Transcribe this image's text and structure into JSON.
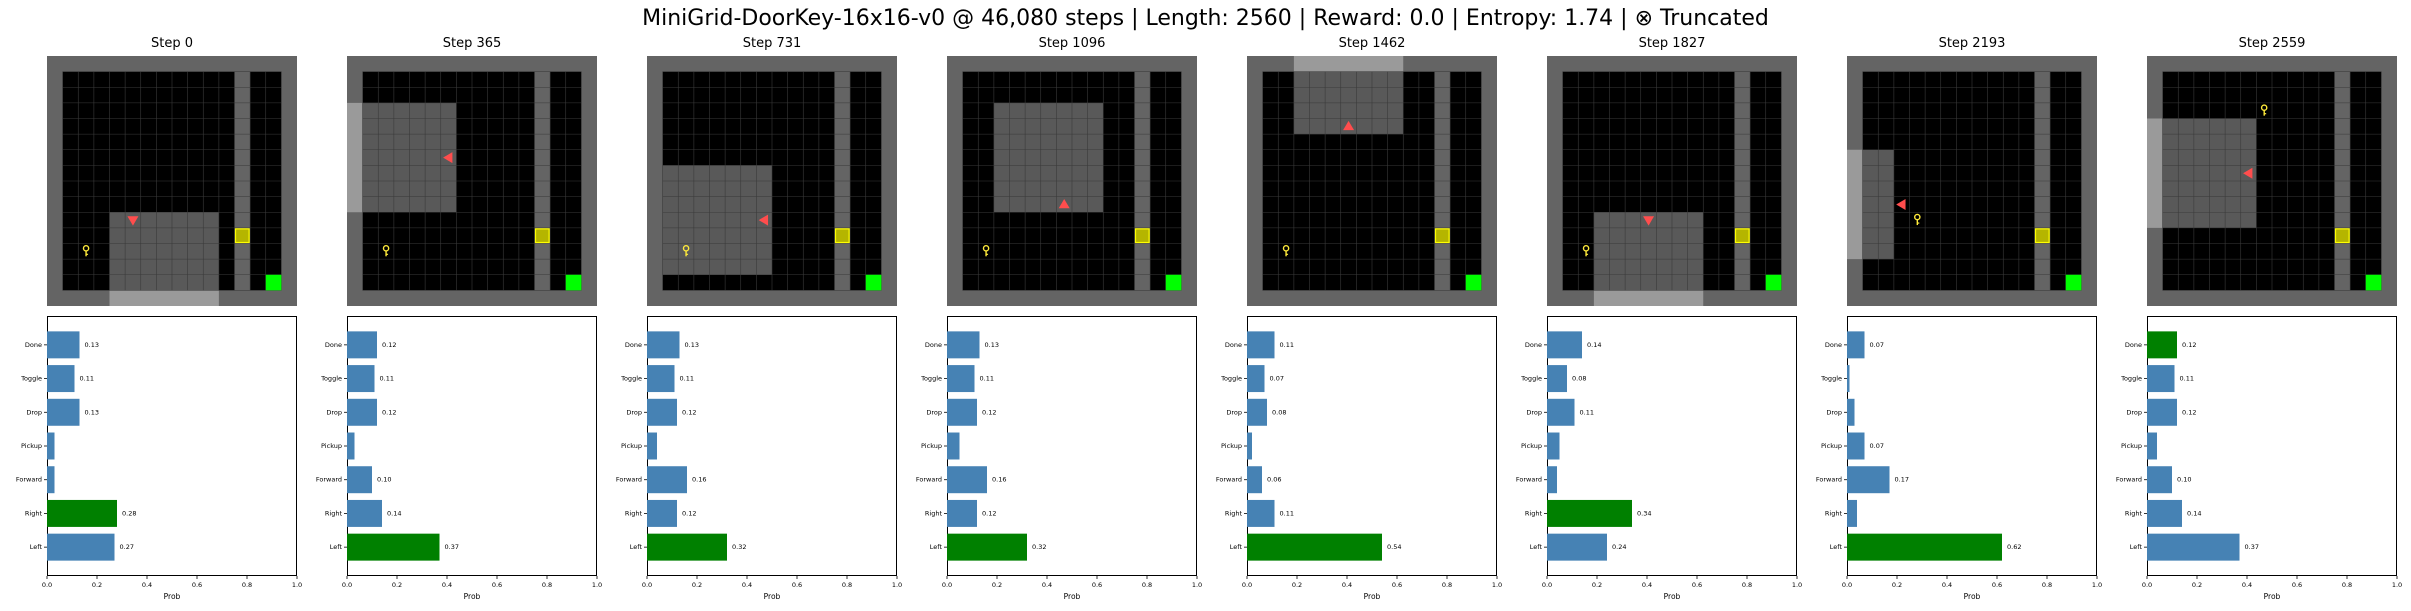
{
  "suptitle": "MiniGrid-DoorKey-16x16-v0 @ 46,080 steps | Length: 2560 | Reward: 0.0 | Entropy: 1.74 | ⊗ Truncated",
  "colors": {
    "default_bar": "#4682b4",
    "chosen_bar": "#008000",
    "agent": "#ff4d4d",
    "key": "#ffeb3b",
    "door": "#b5b500",
    "goal": "#00ff00",
    "wall": "#646464",
    "floor": "#000000",
    "view": "#5a5a5a"
  },
  "chart_data": [
    {
      "type": "bar",
      "orientation": "horizontal",
      "title": "Step 0",
      "categories": [
        "Done",
        "Toggle",
        "Drop",
        "Pickup",
        "Forward",
        "Right",
        "Left"
      ],
      "values": [
        0.13,
        0.11,
        0.13,
        0.03,
        0.03,
        0.28,
        0.27
      ],
      "data_labels": [
        "0.13",
        "0.11",
        "0.13",
        "",
        "",
        "0.28",
        "0.27"
      ],
      "chosen": "Right",
      "xlabel": "Prob",
      "xlim": [
        0,
        1.0
      ],
      "xticks": [
        "0.0",
        "0.2",
        "0.4",
        "0.6",
        "0.8",
        "1.0"
      ]
    },
    {
      "type": "bar",
      "orientation": "horizontal",
      "title": "Step 365",
      "categories": [
        "Done",
        "Toggle",
        "Drop",
        "Pickup",
        "Forward",
        "Right",
        "Left"
      ],
      "values": [
        0.12,
        0.11,
        0.12,
        0.03,
        0.1,
        0.14,
        0.37
      ],
      "data_labels": [
        "0.12",
        "0.11",
        "0.12",
        "",
        "0.10",
        "0.14",
        "0.37"
      ],
      "chosen": "Left",
      "xlabel": "Prob",
      "xlim": [
        0,
        1.0
      ],
      "xticks": [
        "0.0",
        "0.2",
        "0.4",
        "0.6",
        "0.8",
        "1.0"
      ]
    },
    {
      "type": "bar",
      "orientation": "horizontal",
      "title": "Step 731",
      "categories": [
        "Done",
        "Toggle",
        "Drop",
        "Pickup",
        "Forward",
        "Right",
        "Left"
      ],
      "values": [
        0.13,
        0.11,
        0.12,
        0.04,
        0.16,
        0.12,
        0.32
      ],
      "data_labels": [
        "0.13",
        "0.11",
        "0.12",
        "",
        "0.16",
        "0.12",
        "0.32"
      ],
      "chosen": "Left",
      "xlabel": "Prob",
      "xlim": [
        0,
        1.0
      ],
      "xticks": [
        "0.0",
        "0.2",
        "0.4",
        "0.6",
        "0.8",
        "1.0"
      ]
    },
    {
      "type": "bar",
      "orientation": "horizontal",
      "title": "Step 1096",
      "categories": [
        "Done",
        "Toggle",
        "Drop",
        "Pickup",
        "Forward",
        "Right",
        "Left"
      ],
      "values": [
        0.13,
        0.11,
        0.12,
        0.05,
        0.16,
        0.12,
        0.32
      ],
      "data_labels": [
        "0.13",
        "0.11",
        "0.12",
        "",
        "0.16",
        "0.12",
        "0.32"
      ],
      "chosen": "Left",
      "xlabel": "Prob",
      "xlim": [
        0,
        1.0
      ],
      "xticks": [
        "0.0",
        "0.2",
        "0.4",
        "0.6",
        "0.8",
        "1.0"
      ]
    },
    {
      "type": "bar",
      "orientation": "horizontal",
      "title": "Step 1462",
      "categories": [
        "Done",
        "Toggle",
        "Drop",
        "Pickup",
        "Forward",
        "Right",
        "Left"
      ],
      "values": [
        0.11,
        0.07,
        0.08,
        0.02,
        0.06,
        0.11,
        0.54
      ],
      "data_labels": [
        "0.11",
        "0.07",
        "0.08",
        "",
        "0.06",
        "0.11",
        "0.54"
      ],
      "chosen": "Left",
      "xlabel": "Prob",
      "xlim": [
        0,
        1.0
      ],
      "xticks": [
        "0.0",
        "0.2",
        "0.4",
        "0.6",
        "0.8",
        "1.0"
      ]
    },
    {
      "type": "bar",
      "orientation": "horizontal",
      "title": "Step 1827",
      "categories": [
        "Done",
        "Toggle",
        "Drop",
        "Pickup",
        "Forward",
        "Right",
        "Left"
      ],
      "values": [
        0.14,
        0.08,
        0.11,
        0.05,
        0.04,
        0.34,
        0.24
      ],
      "data_labels": [
        "0.14",
        "0.08",
        "0.11",
        "",
        "",
        "0.34",
        "0.24"
      ],
      "chosen": "Right",
      "xlabel": "Prob",
      "xlim": [
        0,
        1.0
      ],
      "xticks": [
        "0.0",
        "0.2",
        "0.4",
        "0.6",
        "0.8",
        "1.0"
      ]
    },
    {
      "type": "bar",
      "orientation": "horizontal",
      "title": "Step 2193",
      "categories": [
        "Done",
        "Toggle",
        "Drop",
        "Pickup",
        "Forward",
        "Right",
        "Left"
      ],
      "values": [
        0.07,
        0.01,
        0.03,
        0.07,
        0.17,
        0.04,
        0.62
      ],
      "data_labels": [
        "0.07",
        "",
        "",
        "0.07",
        "0.17",
        "",
        "0.62"
      ],
      "chosen": "Left",
      "xlabel": "Prob",
      "xlim": [
        0,
        1.0
      ],
      "xticks": [
        "0.0",
        "0.2",
        "0.4",
        "0.6",
        "0.8",
        "1.0"
      ]
    },
    {
      "type": "bar",
      "orientation": "horizontal",
      "title": "Step 2559",
      "categories": [
        "Done",
        "Toggle",
        "Drop",
        "Pickup",
        "Forward",
        "Right",
        "Left"
      ],
      "values": [
        0.12,
        0.11,
        0.12,
        0.04,
        0.1,
        0.14,
        0.37
      ],
      "data_labels": [
        "0.12",
        "0.11",
        "0.12",
        "",
        "0.10",
        "0.14",
        "0.37"
      ],
      "chosen": "Done",
      "xlabel": "Prob",
      "xlim": [
        0,
        1.0
      ],
      "xticks": [
        "0.0",
        "0.2",
        "0.4",
        "0.6",
        "0.8",
        "1.0"
      ]
    }
  ],
  "grid_frames": [
    {
      "agent_dir": "down",
      "view": "bottom-middle",
      "key_visible": true
    },
    {
      "agent_dir": "left",
      "view": "upper-left",
      "key_visible": true
    },
    {
      "agent_dir": "left",
      "view": "lower-left",
      "key_visible": true
    },
    {
      "agent_dir": "up",
      "view": "center",
      "key_visible": true
    },
    {
      "agent_dir": "up",
      "view": "top-middle",
      "key_visible": true
    },
    {
      "agent_dir": "down",
      "view": "bottom-middle",
      "key_visible": true
    },
    {
      "agent_dir": "left",
      "view": "left-middle",
      "key_visible": true
    },
    {
      "agent_dir": "left",
      "view": "upper-left",
      "key_visible": true
    }
  ]
}
